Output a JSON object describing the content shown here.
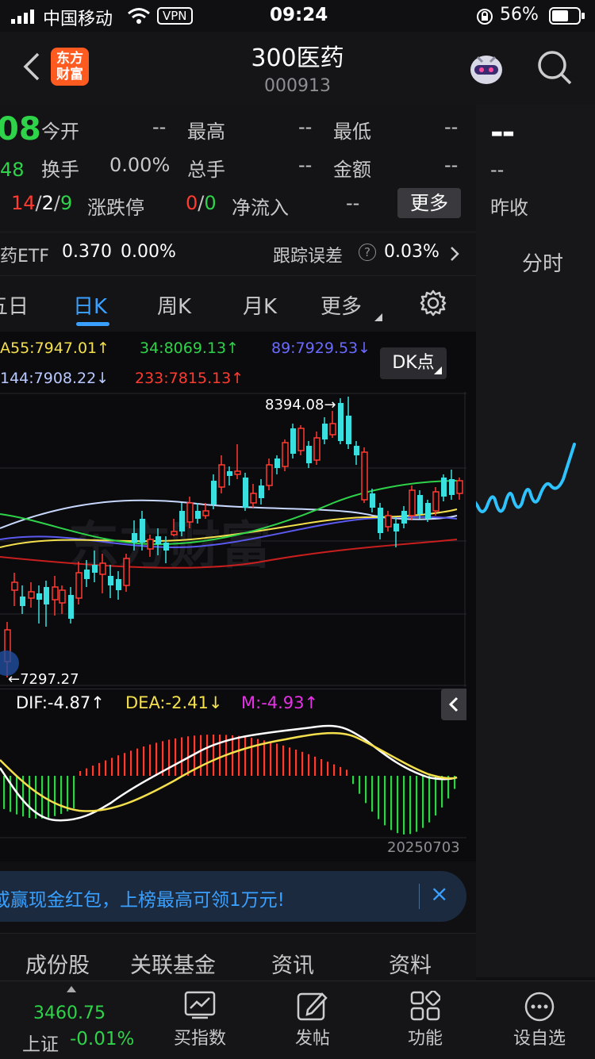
{
  "status_bar": {
    "carrier": "中国移动",
    "vpn": "VPN",
    "time": "09:24",
    "battery": "56%"
  },
  "header": {
    "logo_line1": "东方",
    "logo_line2": "财富",
    "title": "300医药",
    "code": "000913"
  },
  "quote": {
    "price_fragment": "08",
    "change_fragment": "48",
    "row1": {
      "label_open": "今开",
      "open": "--",
      "label_high": "最高",
      "high": "--",
      "label_low": "最低",
      "low": "--"
    },
    "row2": {
      "label_turnover": "换手",
      "turnover": "0.00%",
      "label_volume": "总手",
      "volume": "--",
      "label_amount": "金额",
      "amount": "--"
    },
    "row3": {
      "up": "14",
      "sep1": "/",
      "flat": "2",
      "sep2": "/",
      "down": "9",
      "label_limit": "涨跌停",
      "limit_up": "0",
      "sep3": "/",
      "limit_down": "0",
      "label_netflow": "净流入",
      "netflow": "--"
    },
    "more_button": "更多"
  },
  "right_panel": {
    "price": "--",
    "change": "--",
    "label_prev_close": "昨收",
    "tab_label": "分时"
  },
  "etf_bar": {
    "name": "药ETF",
    "price": "0.370",
    "change": "0.00%",
    "label_tracking": "跟踪误差",
    "help_icon": "?",
    "tracking_error": "0.03%"
  },
  "period_tabs": {
    "tab_5day": "五日",
    "tab_day": "日K",
    "tab_week": "周K",
    "tab_month": "月K",
    "tab_more": "更多"
  },
  "ma_legend": {
    "ma55": "A55:7947.01↑",
    "ma34": "34:8069.13↑",
    "ma89": "89:7929.53↓",
    "ma144": "144:7908.22↓",
    "ma233": "233:7815.13↑",
    "dk_button": "DK点"
  },
  "chart_annotations": {
    "high_label": "8394.08",
    "low_label": "7297.27",
    "watermark": "东方财富"
  },
  "macd": {
    "dif": "DIF:-4.87",
    "dif_arrow": "↑",
    "dea": "DEA:-2.41",
    "dea_arrow": "↓",
    "m": "M:-4.93",
    "m_arrow": "↑",
    "date": "20250703"
  },
  "banner": {
    "text": "或赢现金红包，上榜最高可领1万元!",
    "close": "×"
  },
  "sub_tabs": {
    "constituents": "成份股",
    "funds": "关联基金",
    "news": "资讯",
    "profile": "资料"
  },
  "bottom_nav": {
    "index_value": "3460.75",
    "index_name": "上证",
    "index_change": "-0.01%",
    "buy_index": "买指数",
    "post": "发帖",
    "functions": "功能",
    "set_watch": "设自选"
  },
  "colors": {
    "up": "#ff3b30",
    "down": "#2fd34a",
    "candle_down": "#3ae0e0",
    "accent": "#3aa0ff"
  }
}
